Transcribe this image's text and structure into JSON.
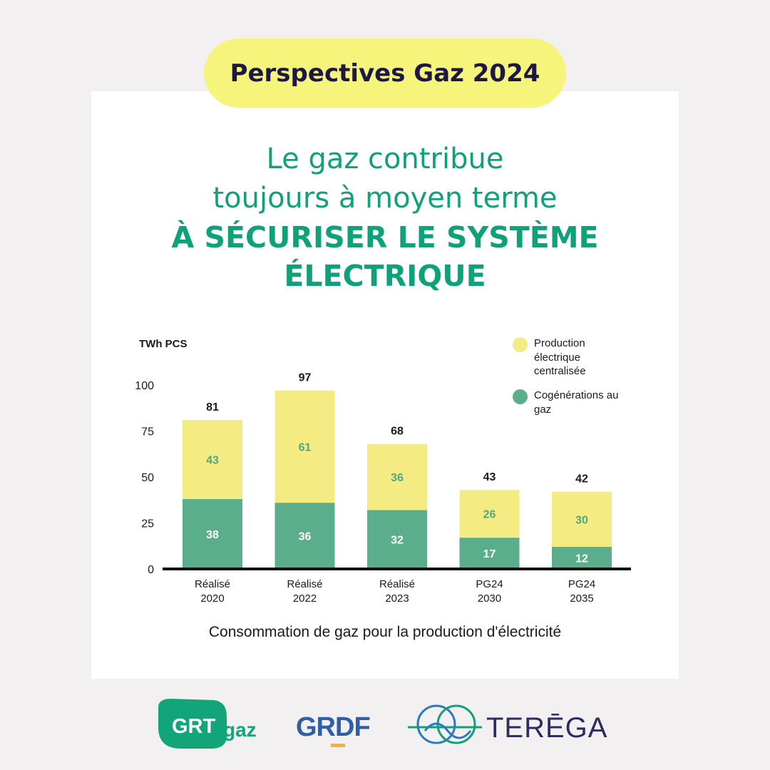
{
  "badge": "Perspectives Gaz 2024",
  "headline": {
    "line1": "Le gaz contribue",
    "line2": "toujours à moyen terme",
    "line3": "À SÉCURISER LE SYSTÈME",
    "line4": "ÉLECTRIQUE"
  },
  "caption": "Consommation de gaz pour la production d'électricité",
  "logos": {
    "grtgaz_a": "GRT",
    "grtgaz_b": "gaz",
    "grdf": "GRDF",
    "terega": "TERĒGA"
  },
  "colors": {
    "green": "#5bae8c",
    "yellow": "#f4ec82",
    "title_green": "#0fa27a",
    "navy": "#1c1745",
    "badge": "#f6f47a"
  },
  "chart_data": {
    "type": "bar",
    "stacked": true,
    "ylabel": "TWh PCS",
    "ylim": [
      0,
      100
    ],
    "yticks": [
      0,
      25,
      50,
      75,
      100
    ],
    "categories": [
      [
        "Réalisé",
        "2020"
      ],
      [
        "Réalisé",
        "2022"
      ],
      [
        "Réalisé",
        "2023"
      ],
      [
        "PG24",
        "2030"
      ],
      [
        "PG24",
        "2035"
      ]
    ],
    "series": [
      {
        "name": "Cogénérations au gaz",
        "color": "#5bae8c",
        "values": [
          38,
          36,
          32,
          17,
          12
        ]
      },
      {
        "name": "Production électrique centralisée",
        "color": "#f4ec82",
        "values": [
          43,
          61,
          36,
          26,
          30
        ]
      }
    ],
    "totals": [
      81,
      97,
      68,
      43,
      42
    ],
    "legend": [
      {
        "label": "Production électrique centralisée",
        "color": "#f4ec82"
      },
      {
        "label": "Cogénérations au gaz",
        "color": "#5bae8c"
      }
    ],
    "legend_position": "top-right",
    "grid": false
  }
}
